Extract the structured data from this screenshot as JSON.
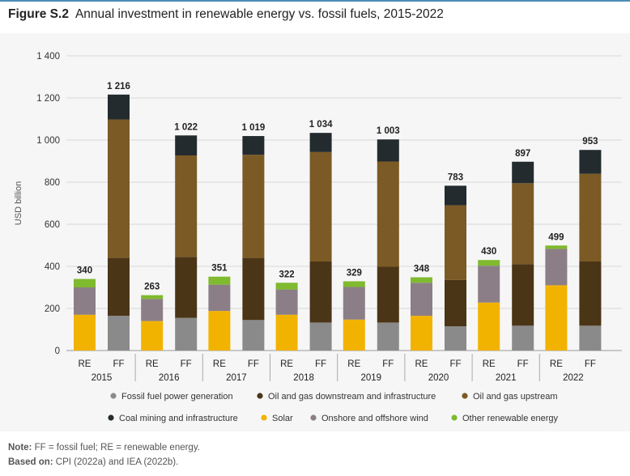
{
  "figure": {
    "number": "Figure S.2",
    "title": "Annual investment in renewable energy vs. fossil fuels, 2015-2022"
  },
  "notes": {
    "note_label": "Note:",
    "note_text": "FF = fossil fuel; RE = renewable energy.",
    "source_label": "Based on:",
    "source_text": "CPI (2022a) and IEA (2022b)."
  },
  "chart_data": {
    "type": "bar",
    "stacked": true,
    "ylabel": "USD billion",
    "ylim": [
      0,
      1400
    ],
    "yticks": [
      0,
      200,
      400,
      600,
      800,
      1000,
      1200,
      1400
    ],
    "ytick_labels": [
      "0",
      "200",
      "400",
      "600",
      "800",
      "1 000",
      "1 200",
      "1 400"
    ],
    "grid": true,
    "legend_position": "bottom",
    "years": [
      "2015",
      "2016",
      "2017",
      "2018",
      "2019",
      "2020",
      "2021",
      "2022"
    ],
    "bar_labels": [
      "RE",
      "FF"
    ],
    "series": [
      {
        "name": "Fossil fuel power generation",
        "group": "FF",
        "color": "#8a8a8a",
        "values": [
          165,
          155,
          145,
          133,
          133,
          115,
          118,
          118
        ]
      },
      {
        "name": "Oil and gas downstream and infrastructure",
        "group": "FF",
        "color": "#4a3516",
        "values": [
          275,
          290,
          295,
          290,
          265,
          220,
          292,
          305
        ]
      },
      {
        "name": "Oil and gas upstream",
        "group": "FF",
        "color": "#7b5a25",
        "values": [
          658,
          482,
          490,
          520,
          500,
          355,
          385,
          417
        ]
      },
      {
        "name": "Coal mining and infrastructure",
        "group": "FF",
        "color": "#232b2e",
        "values": [
          118,
          95,
          89,
          91,
          105,
          93,
          102,
          113
        ]
      },
      {
        "name": "Solar",
        "group": "RE",
        "color": "#f2b300",
        "values": [
          170,
          140,
          188,
          170,
          147,
          165,
          228,
          310
        ]
      },
      {
        "name": "Onshore and offshore wind",
        "group": "RE",
        "color": "#8c7e86",
        "values": [
          130,
          105,
          125,
          120,
          155,
          157,
          175,
          173
        ]
      },
      {
        "name": "Other renewable energy",
        "group": "RE",
        "color": "#7fba2f",
        "values": [
          40,
          18,
          38,
          32,
          27,
          26,
          27,
          16
        ]
      }
    ],
    "totals": {
      "RE": [
        340,
        263,
        351,
        322,
        329,
        348,
        430,
        499
      ],
      "FF": [
        1216,
        1022,
        1019,
        1034,
        1003,
        783,
        897,
        953
      ]
    },
    "total_labels": {
      "RE": [
        "340",
        "263",
        "351",
        "322",
        "329",
        "348",
        "430",
        "499"
      ],
      "FF": [
        "1 216",
        "1 022",
        "1 019",
        "1 034",
        "1 003",
        "783",
        "897",
        "953"
      ]
    },
    "legend_rows": [
      [
        "Fossil fuel power generation",
        "Oil and gas downstream and infrastructure",
        "Oil and gas upstream"
      ],
      [
        "Coal mining and infrastructure",
        "Solar",
        "Onshore and offshore wind",
        "Other renewable energy"
      ]
    ]
  }
}
